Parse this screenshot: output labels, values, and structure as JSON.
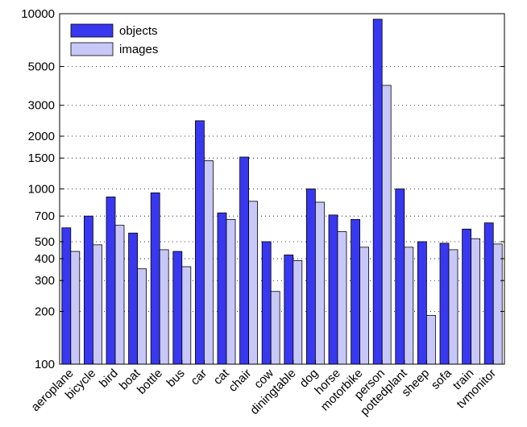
{
  "chart_data": {
    "type": "bar",
    "y_scale": "log",
    "ylim": [
      100,
      10000
    ],
    "yticks": [
      100,
      200,
      300,
      400,
      500,
      700,
      1000,
      1500,
      2000,
      3000,
      5000,
      10000
    ],
    "ytick_labels": [
      "100",
      "200",
      "300",
      "400",
      "500",
      "700",
      "1000",
      "1500",
      "2000",
      "3000",
      "5000",
      "10000"
    ],
    "grid": "horizontal-dotted",
    "legend_position": "top-left",
    "categories": [
      "aeroplane",
      "bicycle",
      "bird",
      "boat",
      "bottle",
      "bus",
      "car",
      "cat",
      "chair",
      "cow",
      "diningtable",
      "dog",
      "horse",
      "motorbike",
      "person",
      "pottedplant",
      "sheep",
      "sofa",
      "train",
      "tvmonitor"
    ],
    "series": [
      {
        "name": "objects",
        "color": "#3838f0",
        "values": [
          600,
          700,
          900,
          560,
          950,
          440,
          2450,
          730,
          1520,
          500,
          420,
          1000,
          710,
          670,
          9300,
          1000,
          500,
          490,
          590,
          640
        ]
      },
      {
        "name": "images",
        "color": "#c8c8f8",
        "values": [
          440,
          480,
          620,
          350,
          450,
          360,
          1450,
          670,
          850,
          260,
          390,
          840,
          570,
          465,
          3900,
          465,
          190,
          450,
          520,
          485
        ]
      }
    ]
  }
}
